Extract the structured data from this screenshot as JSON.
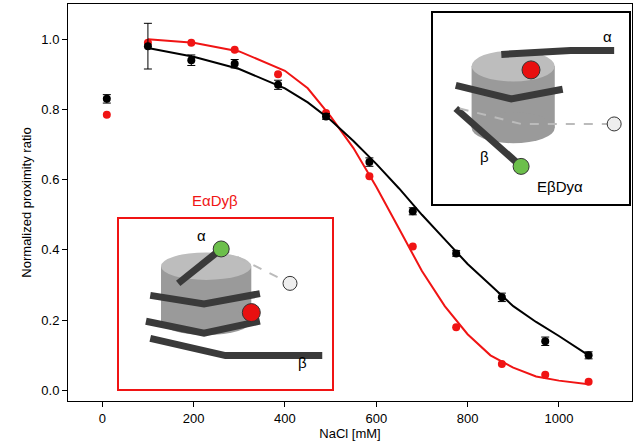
{
  "chart_data": {
    "type": "scatter",
    "x_label": "NaCl [mM]",
    "y_label": "Normalized proximity ratio",
    "x": [
      10,
      100,
      195,
      290,
      385,
      490,
      585,
      680,
      775,
      875,
      970,
      1065
    ],
    "fit_x": [
      100,
      200,
      300,
      400,
      450,
      500,
      550,
      600,
      650,
      700,
      750,
      800,
      850,
      900,
      950,
      1000,
      1065
    ],
    "series": [
      {
        "name": "EαDyβ",
        "color": "#f01414",
        "marker": "circle",
        "values": [
          0.785,
          0.99,
          0.99,
          0.97,
          0.9,
          0.79,
          0.61,
          0.41,
          0.18,
          0.075,
          0.045,
          0.025
        ],
        "fit_values": [
          1.0,
          0.99,
          0.965,
          0.91,
          0.86,
          0.78,
          0.69,
          0.58,
          0.46,
          0.34,
          0.24,
          0.16,
          0.1,
          0.065,
          0.04,
          0.028,
          0.018
        ]
      },
      {
        "name": "EβDyα",
        "color": "#000000",
        "marker": "circle",
        "values": [
          0.83,
          0.98,
          0.94,
          0.93,
          0.87,
          0.78,
          0.65,
          0.51,
          0.39,
          0.265,
          0.14,
          0.1
        ],
        "error": [
          0.012,
          0.065,
          0.015,
          0.012,
          0.013,
          0.008,
          0.012,
          0.01,
          0.008,
          0.012,
          0.012,
          0.01
        ],
        "fit_values": [
          0.975,
          0.95,
          0.915,
          0.86,
          0.82,
          0.77,
          0.71,
          0.645,
          0.575,
          0.5,
          0.43,
          0.36,
          0.3,
          0.24,
          0.195,
          0.155,
          0.1
        ]
      }
    ],
    "annotations": [
      "α",
      "β",
      "α",
      "β"
    ],
    "xlim": [
      -75,
      1160
    ],
    "ylim": [
      -0.03,
      1.1
    ],
    "xticks": [
      0,
      200,
      400,
      600,
      800,
      1000
    ],
    "yticks": [
      {
        "value": 0,
        "label": "0.0"
      },
      0.2,
      0.4,
      0.6,
      0.8,
      {
        "value": 1,
        "label": "1.0"
      }
    ],
    "grid": false
  }
}
